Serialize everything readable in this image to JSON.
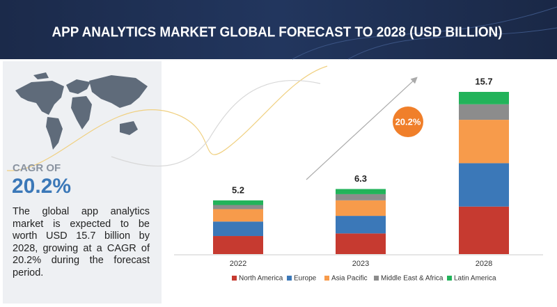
{
  "chart_data": {
    "type": "bar",
    "stacked": true,
    "title": "APP ANALYTICS MARKET GLOBAL FORECAST TO 2028 (USD BILLION)",
    "categories": [
      "2022",
      "2023",
      "2028"
    ],
    "totals": [
      5.2,
      6.3,
      15.7
    ],
    "series": [
      {
        "name": "North America",
        "color": "#c63a30",
        "values": [
          1.75,
          2.0,
          4.6
        ]
      },
      {
        "name": "Europe",
        "color": "#3b78b8",
        "values": [
          1.4,
          1.7,
          4.2
        ]
      },
      {
        "name": "Asia Pacific",
        "color": "#f79b4b",
        "values": [
          1.2,
          1.5,
          4.2
        ]
      },
      {
        "name": "Middle East & Africa",
        "color": "#8c8c8c",
        "values": [
          0.4,
          0.6,
          1.5
        ]
      },
      {
        "name": "Latin America",
        "color": "#22b35a",
        "values": [
          0.45,
          0.5,
          1.2
        ]
      }
    ],
    "cagr_badge": "20.2%",
    "side": {
      "heading": "CAGR OF",
      "value": "20.2%",
      "text": "The global app analytics market is expected to be worth USD 15.7 billion by 2028, growing at a CAGR of 20.2% during the forecast period."
    }
  }
}
